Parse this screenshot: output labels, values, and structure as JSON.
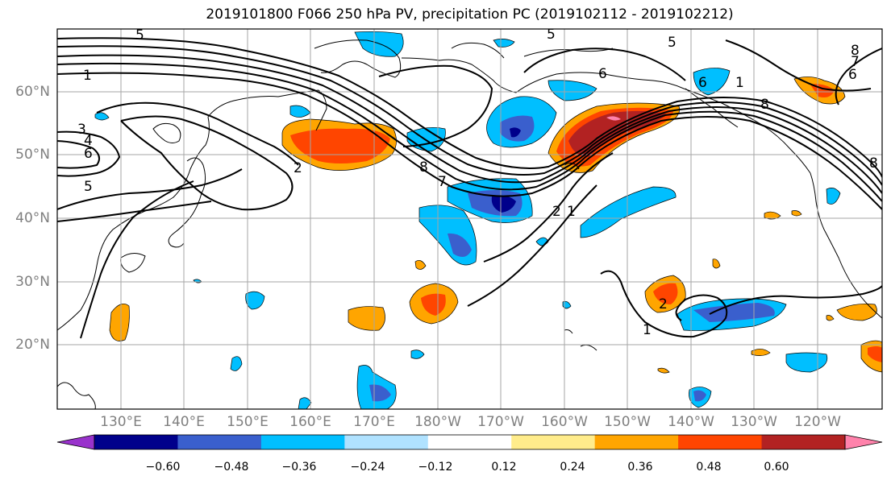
{
  "title": "2019101800 F066 250 hPa PV, precipitation PC (2019102112 - 2019102212)",
  "lat_labels": [
    "60°N",
    "50°N",
    "40°N",
    "30°N",
    "20°N"
  ],
  "lon_labels": [
    "130°E",
    "140°E",
    "150°E",
    "160°E",
    "170°E",
    "180°W",
    "170°W",
    "160°W",
    "150°W",
    "140°W",
    "130°W",
    "120°W"
  ],
  "colorbar": {
    "colors": [
      "#9932CC",
      "#00008B",
      "#3A5FCD",
      "#00BFFF",
      "#B0E2FF",
      "#FFFFFF",
      "#FFEC8B",
      "#FFA500",
      "#FF4500",
      "#B22222",
      "#FF82AB"
    ],
    "tick_labels": [
      "−0.60",
      "−0.48",
      "−0.36",
      "−0.24",
      "−0.12",
      "0.12",
      "0.24",
      "0.36",
      "0.48",
      "0.60"
    ]
  },
  "contour_labels": [
    "5",
    "5",
    "5",
    "1",
    "3",
    "4",
    "6",
    "5",
    "2",
    "8",
    "7",
    "6",
    "8",
    "6",
    "1",
    "8",
    "7",
    "6",
    "2",
    "1",
    "1",
    "2",
    "8"
  ]
}
